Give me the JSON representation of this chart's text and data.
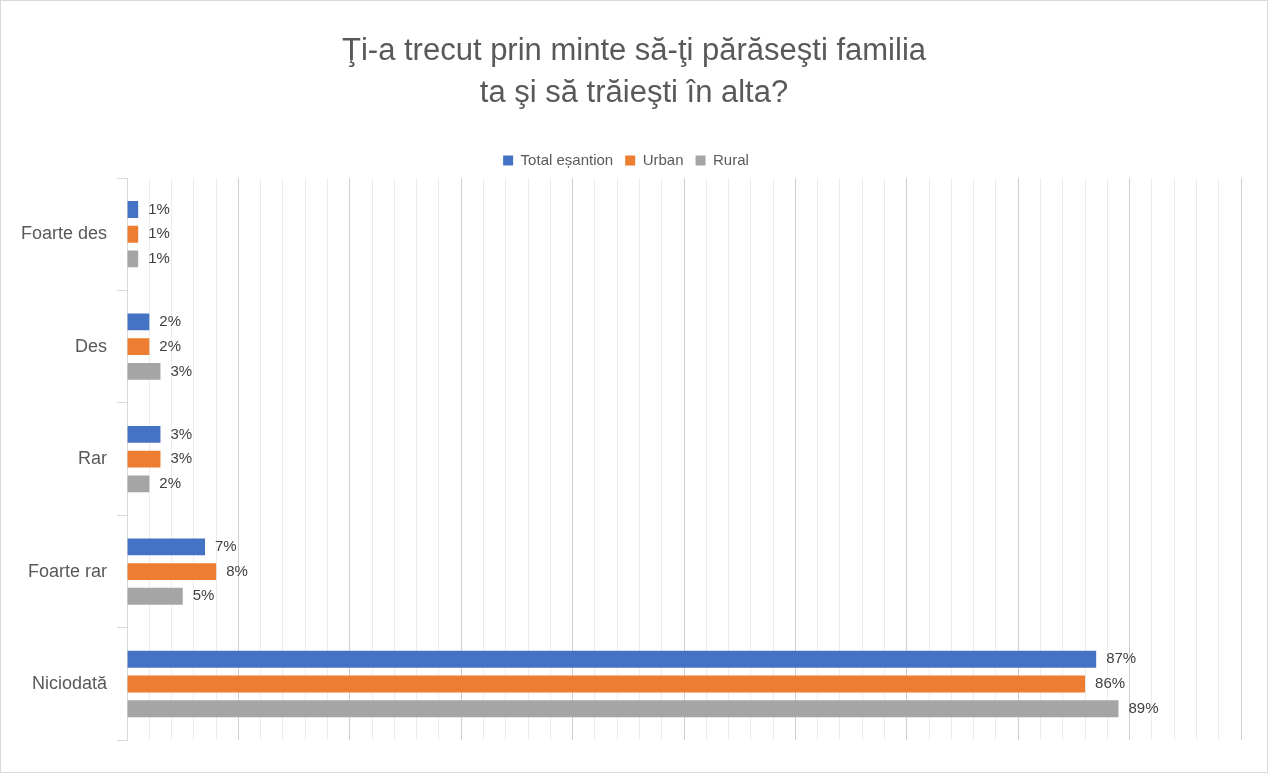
{
  "chart_data": {
    "type": "bar",
    "orientation": "horizontal",
    "title": "Ţi-a trecut prin minte să-ţi părăseşti familia ta şi să trăieşti în alta?",
    "categories": [
      "Foarte des",
      "Des",
      "Rar",
      "Foarte rar",
      "Niciodată"
    ],
    "series": [
      {
        "name": "Total eșantion",
        "color": "#4472c4",
        "values": [
          1,
          2,
          3,
          7,
          87
        ],
        "value_labels": [
          "1%",
          "2%",
          "3%",
          "7%",
          "87%"
        ]
      },
      {
        "name": "Urban",
        "color": "#ed7d31",
        "values": [
          1,
          2,
          3,
          8,
          86
        ],
        "value_labels": [
          "1%",
          "2%",
          "3%",
          "8%",
          "86%"
        ]
      },
      {
        "name": "Rural",
        "color": "#a5a5a5",
        "values": [
          1,
          3,
          2,
          5,
          89
        ],
        "value_labels": [
          "1%",
          "3%",
          "2%",
          "5%",
          "89%"
        ]
      }
    ],
    "xlim": [
      0,
      100
    ],
    "xticks": [
      {
        "value": 0,
        "label": null
      },
      {
        "value": 2,
        "label": null
      },
      {
        "value": 4,
        "label": null
      },
      {
        "value": 6,
        "label": null
      },
      {
        "value": 8,
        "label": null
      },
      {
        "value": 10,
        "label": null
      },
      {
        "value": 12,
        "label": null
      },
      {
        "value": 14,
        "label": null
      },
      {
        "value": 16,
        "label": null
      },
      {
        "value": 18,
        "label": null
      },
      {
        "value": 20,
        "label": null
      },
      {
        "value": 22,
        "label": null
      },
      {
        "value": 24,
        "label": null
      },
      {
        "value": 26,
        "label": null
      },
      {
        "value": 28,
        "label": null
      },
      {
        "value": 30,
        "label": null
      },
      {
        "value": 32,
        "label": null
      },
      {
        "value": 34,
        "label": null
      },
      {
        "value": 36,
        "label": null
      },
      {
        "value": 38,
        "label": null
      },
      {
        "value": 40,
        "label": null
      },
      {
        "value": 42,
        "label": null
      },
      {
        "value": 44,
        "label": null
      },
      {
        "value": 46,
        "label": null
      },
      {
        "value": 48,
        "label": null
      },
      {
        "value": 50,
        "label": null
      },
      {
        "value": 52,
        "label": null
      },
      {
        "value": 54,
        "label": null
      },
      {
        "value": 56,
        "label": null
      },
      {
        "value": 58,
        "label": null
      },
      {
        "value": 60,
        "label": null
      },
      {
        "value": 62,
        "label": null
      },
      {
        "value": 64,
        "label": null
      },
      {
        "value": 66,
        "label": null
      },
      {
        "value": 68,
        "label": null
      },
      {
        "value": 70,
        "label": null
      },
      {
        "value": 72,
        "label": null
      },
      {
        "value": 74,
        "label": null
      },
      {
        "value": 76,
        "label": null
      },
      {
        "value": 78,
        "label": null
      },
      {
        "value": 80,
        "label": null
      },
      {
        "value": 82,
        "label": null
      },
      {
        "value": 84,
        "label": null
      },
      {
        "value": 86,
        "label": null
      },
      {
        "value": 88,
        "label": null
      },
      {
        "value": 90,
        "label": null
      },
      {
        "value": 92,
        "label": null
      },
      {
        "value": 94,
        "label": null
      },
      {
        "value": 96,
        "label": null
      },
      {
        "value": 98,
        "label": null
      },
      {
        "value": 100,
        "label": null
      }
    ],
    "tick_labels": "y",
    "grid": "x",
    "legend": "top"
  }
}
